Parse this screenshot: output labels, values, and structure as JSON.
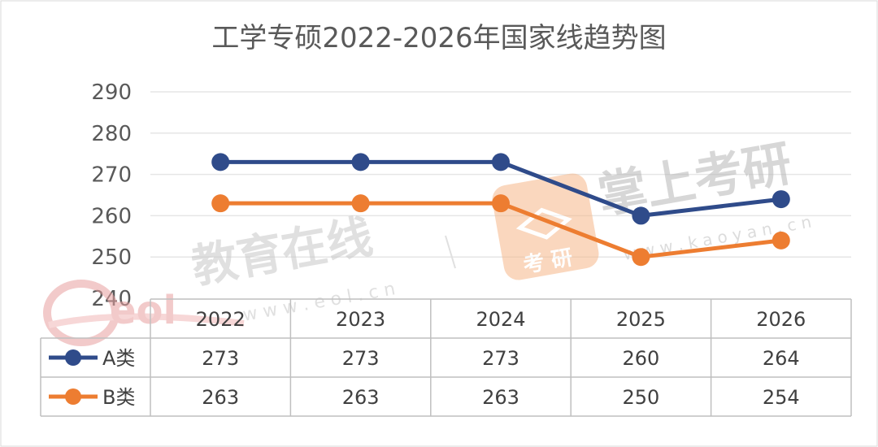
{
  "chart_data": {
    "type": "line",
    "title": "工学专硕2022-2026年国家线趋势图",
    "categories": [
      "2022",
      "2023",
      "2024",
      "2025",
      "2026"
    ],
    "yticks": [
      240,
      250,
      260,
      270,
      280,
      290
    ],
    "ylim": [
      240,
      290
    ],
    "grid": true,
    "legend": "data-table",
    "series": [
      {
        "name": "A类",
        "values": [
          273,
          273,
          273,
          260,
          264
        ],
        "color": "#2f4b8a"
      },
      {
        "name": "B类",
        "values": [
          263,
          263,
          263,
          250,
          254
        ],
        "color": "#ed7d31"
      }
    ]
  },
  "watermarks": {
    "eol_text": "教育在线",
    "eol_url": "w w w . e o l . c n",
    "eol_logo": "eol",
    "kaoyan_text": "掌上考研",
    "kaoyan_badge": "考 研",
    "kaoyan_url": "w w w . k a o y a n . c n"
  }
}
